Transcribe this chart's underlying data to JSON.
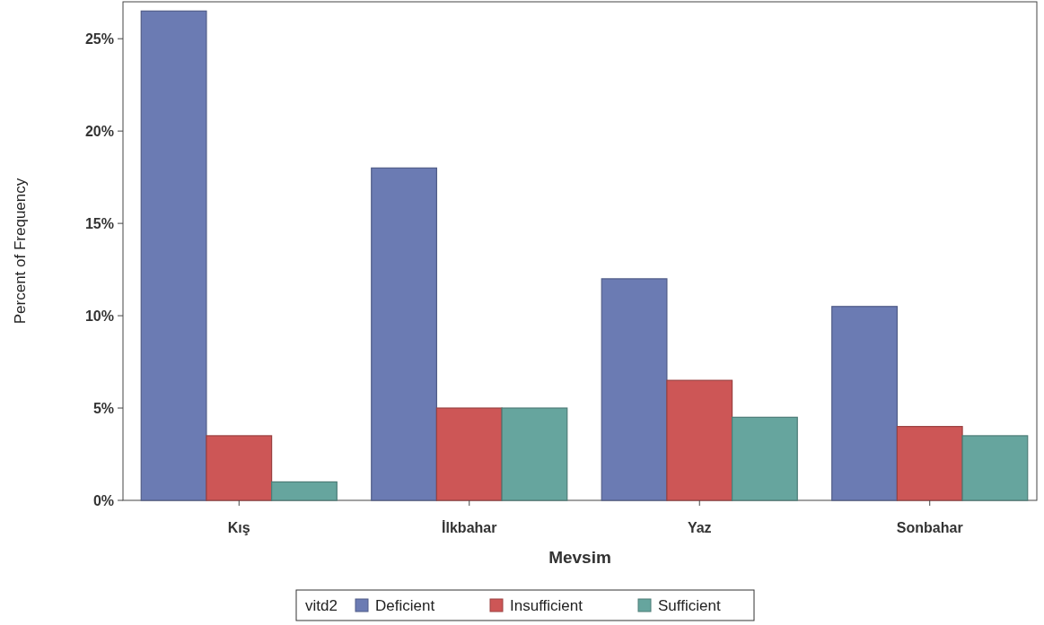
{
  "chart_data": {
    "type": "bar",
    "xlabel": "Mevsim",
    "ylabel": "Percent of Frequency",
    "legend_title": "vitd2",
    "categories": [
      "Kış",
      "İlkbahar",
      "Yaz",
      "Sonbahar"
    ],
    "series": [
      {
        "name": "Deficient",
        "color": "#6b7bb3",
        "values": [
          26.5,
          18,
          12,
          10.5
        ]
      },
      {
        "name": "Insufficient",
        "color": "#cd5656",
        "values": [
          3.5,
          5,
          6.5,
          4
        ]
      },
      {
        "name": "Sufficient",
        "color": "#66a59e",
        "values": [
          1,
          5,
          4.5,
          3.5
        ]
      }
    ],
    "ylim": [
      0,
      27
    ],
    "yticks": [
      {
        "value": 0,
        "label": "0%"
      },
      {
        "value": 5,
        "label": "5%"
      },
      {
        "value": 10,
        "label": "10%"
      },
      {
        "value": 15,
        "label": "15%"
      },
      {
        "value": 20,
        "label": "20%"
      },
      {
        "value": 25,
        "label": "25%"
      }
    ],
    "grid": false,
    "legend": "bottom"
  }
}
